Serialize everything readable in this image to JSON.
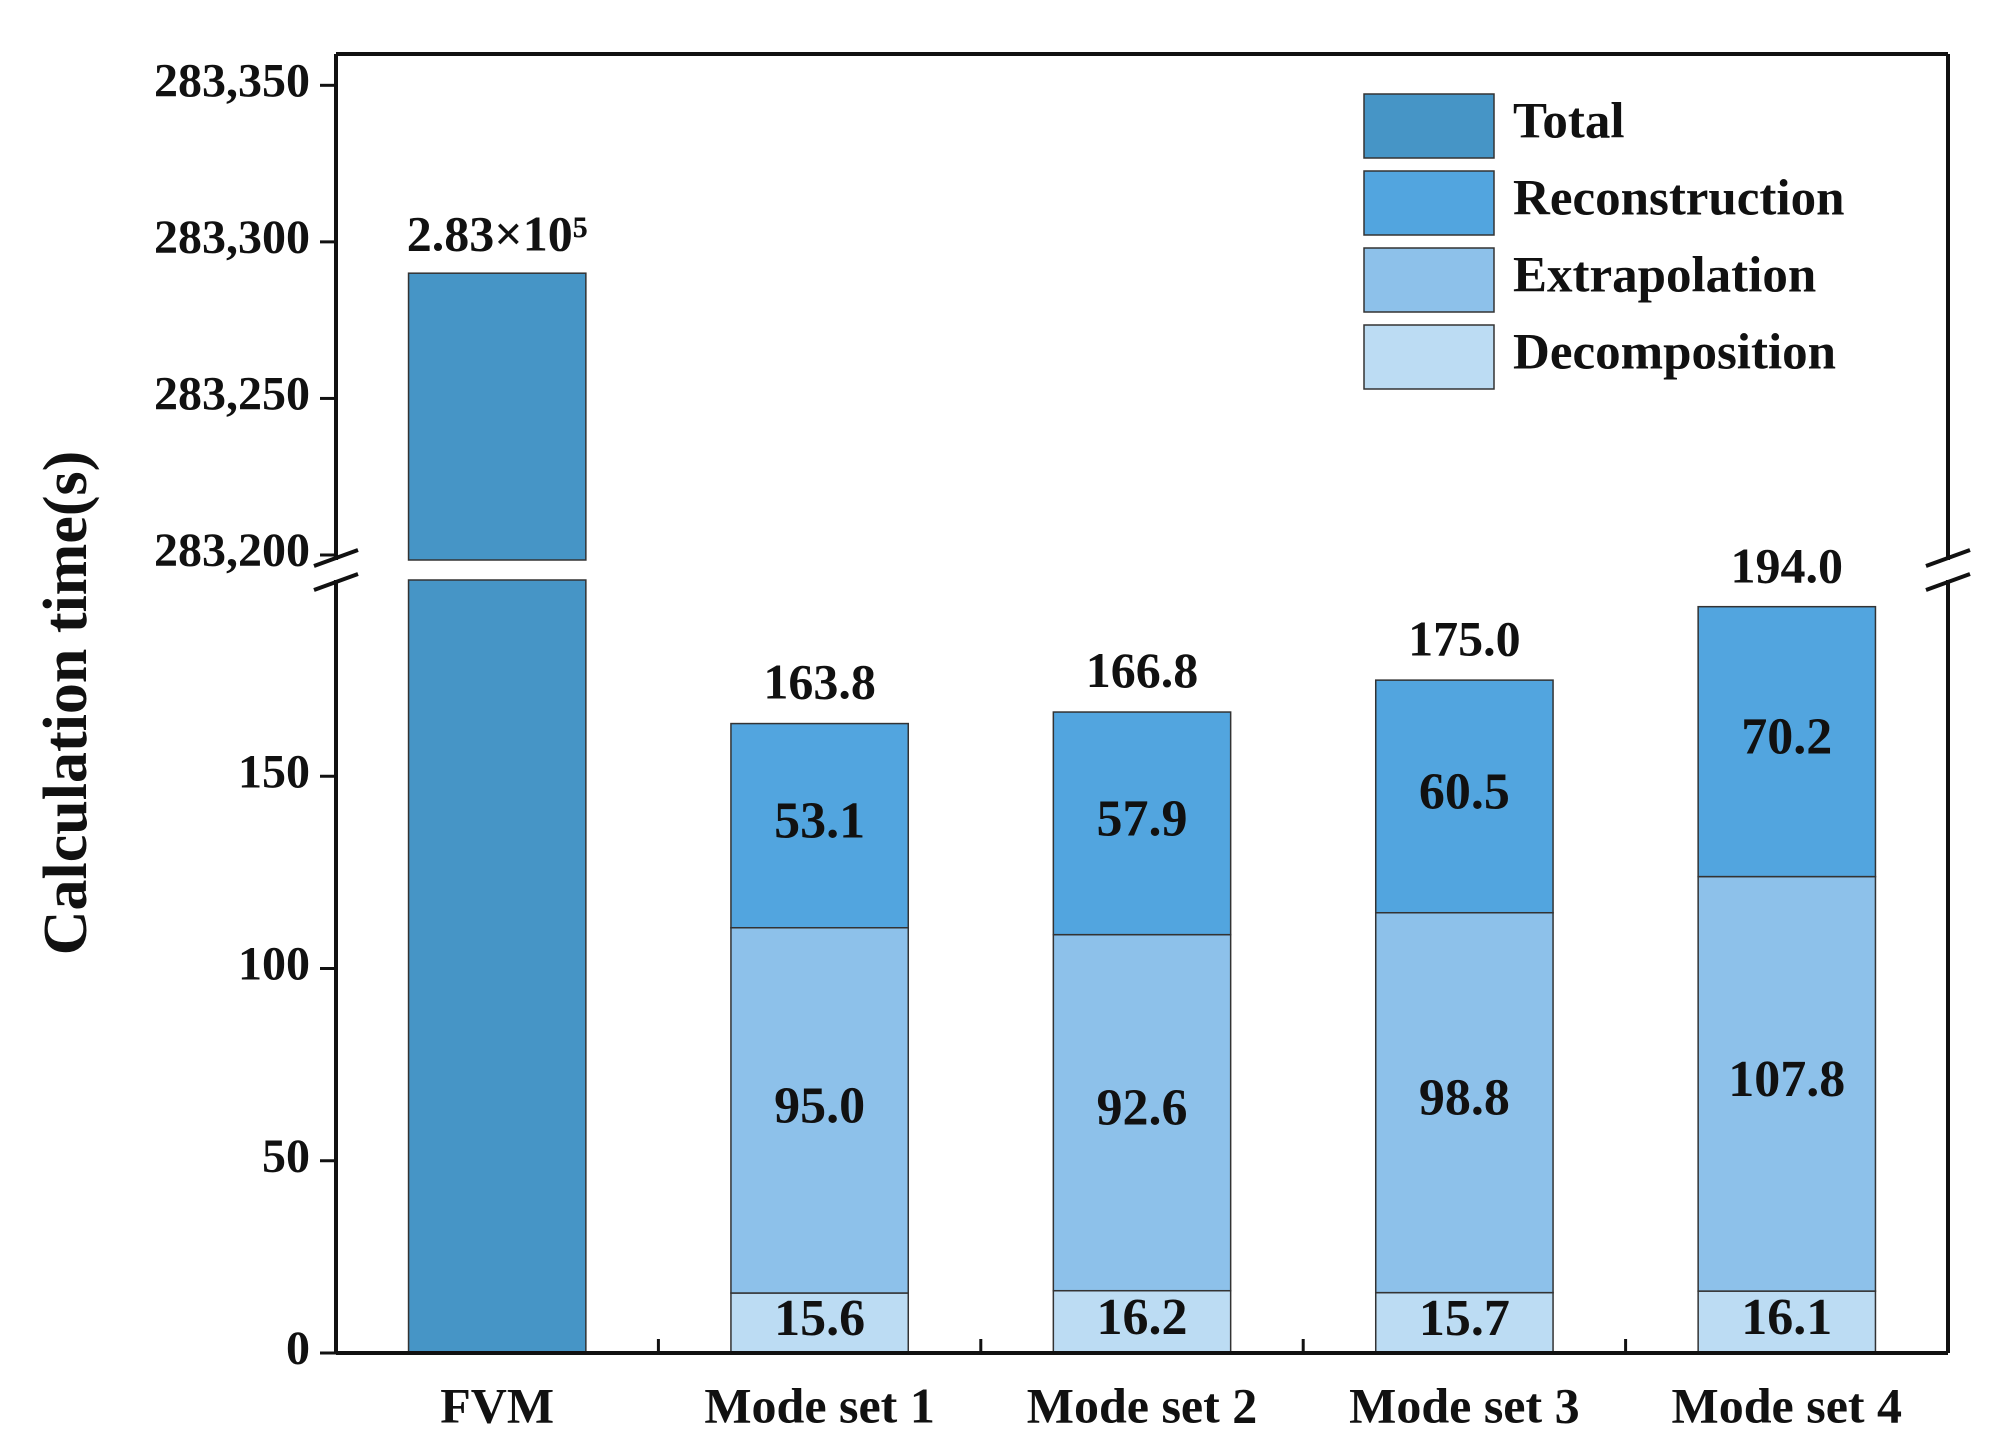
{
  "chart_data": {
    "type": "bar",
    "stacked": true,
    "y_label": "Calculation time(s)",
    "categories": [
      "FVM",
      "Mode set 1",
      "Mode set 2",
      "Mode set 3",
      "Mode set 4"
    ],
    "series": [
      {
        "name": "Total",
        "color": "#4695c6",
        "values": [
          283290,
          163.8,
          166.8,
          175,
          194
        ],
        "value_labels": [
          "2.83×10⁵",
          "163.8",
          "166.8",
          "175.0",
          "194.0"
        ]
      },
      {
        "name": "Reconstruction",
        "color": "#52a5df",
        "values": [
          null,
          53.1,
          57.9,
          60.5,
          70.2
        ],
        "value_labels": [
          null,
          "53.1",
          "57.9",
          "60.5",
          "70.2"
        ]
      },
      {
        "name": "Extrapolation",
        "color": "#8dc1ea",
        "values": [
          null,
          95,
          92.6,
          98.8,
          107.8
        ],
        "value_labels": [
          null,
          "95.0",
          "92.6",
          "98.8",
          "107.8"
        ]
      },
      {
        "name": "Decomposition",
        "color": "#bcdcf3",
        "values": [
          null,
          15.6,
          16.2,
          15.7,
          16.1
        ],
        "value_labels": [
          null,
          "15.6",
          "16.2",
          "15.7",
          "16.1"
        ]
      }
    ],
    "ylim": [
      0,
      200
    ],
    "yticks": [
      0,
      50,
      100,
      150
    ],
    "y_break": {
      "ylim": [
        283200,
        283360
      ],
      "yticks": [
        {
          "value": 283200,
          "label": "283,200"
        },
        {
          "value": 283250,
          "label": "283,250"
        },
        {
          "value": 283300,
          "label": "283,300"
        },
        {
          "value": 283350,
          "label": "283,350"
        }
      ]
    },
    "legend": "upper right"
  }
}
